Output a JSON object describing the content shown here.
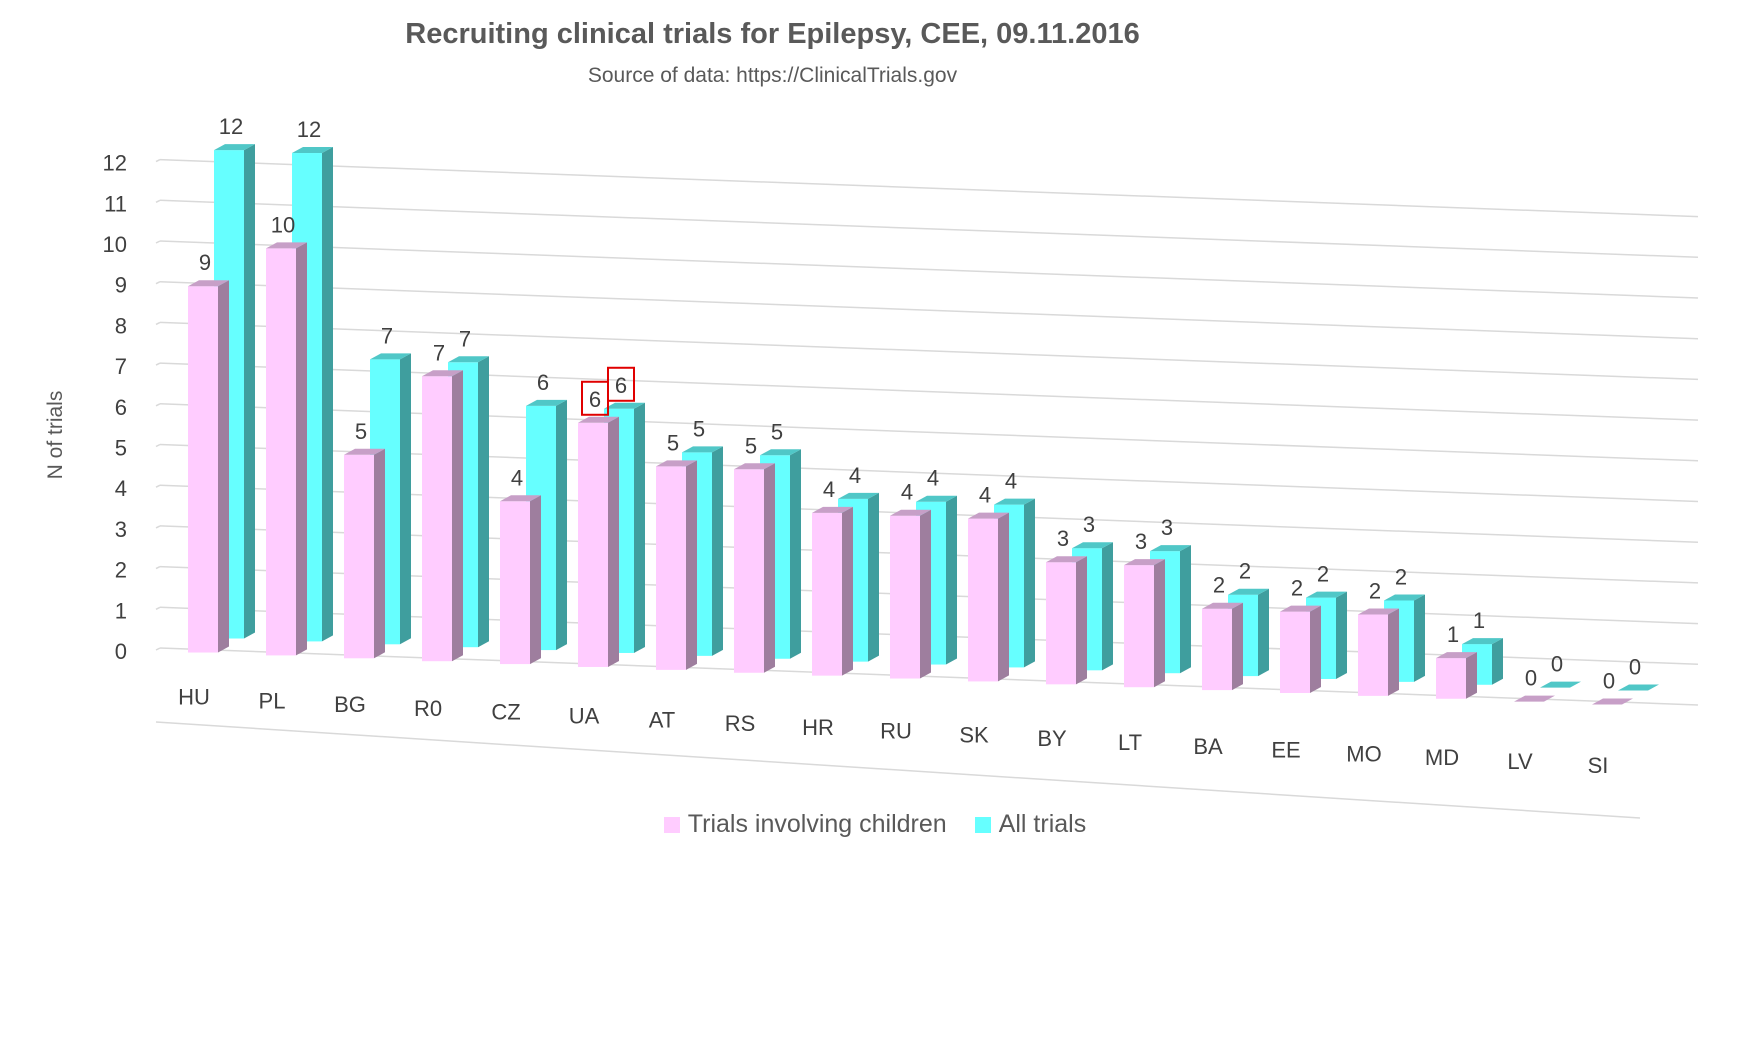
{
  "chart_data": {
    "type": "bar",
    "title": "Recruiting clinical trials for Epilepsy, CEE, 09.11.2016",
    "subtitle": "Source of data: https://ClinicalTrials.gov",
    "ylabel": "N of trials",
    "xlabel": "",
    "ylim": [
      0,
      12
    ],
    "y_ticks": [
      "0",
      "1",
      "2",
      "3",
      "4",
      "5",
      "6",
      "7",
      "8",
      "9",
      "10",
      "11",
      "12"
    ],
    "grid": true,
    "legend_position": "bottom",
    "three_d": true,
    "categories": [
      "HU",
      "PL",
      "BG",
      "R0",
      "CZ",
      "UA",
      "AT",
      "RS",
      "HR",
      "RU",
      "SK",
      "BY",
      "LT",
      "BA",
      "EE",
      "MO",
      "MD",
      "LV",
      "SI"
    ],
    "series": [
      {
        "name": "Trials  involving children",
        "color": "#ffccff",
        "values": [
          9,
          10,
          5,
          7,
          4,
          6,
          5,
          5,
          4,
          4,
          4,
          3,
          3,
          2,
          2,
          2,
          1,
          0,
          0
        ]
      },
      {
        "name": "All trials",
        "color": "#66ffff",
        "values": [
          12,
          12,
          7,
          7,
          6,
          6,
          5,
          5,
          4,
          4,
          4,
          3,
          3,
          2,
          2,
          2,
          1,
          0,
          0
        ]
      }
    ],
    "highlight_category": "UA",
    "highlight_color": "#e00000"
  }
}
